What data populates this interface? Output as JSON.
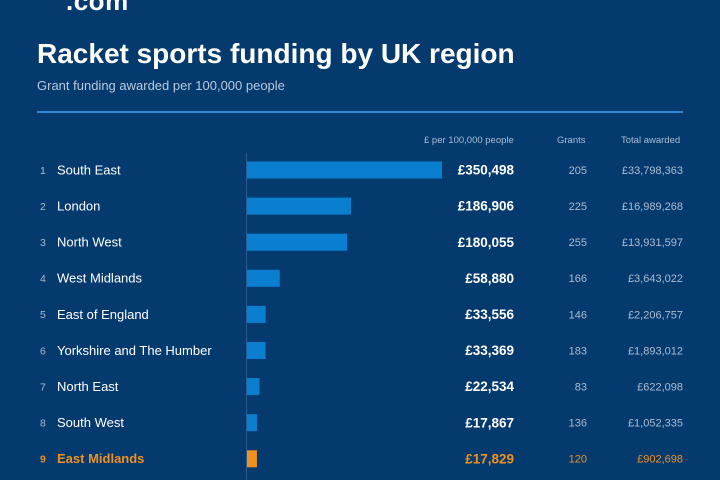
{
  "header": {
    "logo_text": ".com",
    "title": "Racket sports funding by UK region",
    "subtitle": "Grant funding awarded per 100,000 people"
  },
  "columns": {
    "per_capita": "£ per 100,000 people",
    "grants": "Grants",
    "total": "Total awarded"
  },
  "colors": {
    "background": "#053a6f",
    "bar": "#0a7fd0",
    "highlight": "#f0901e",
    "divider": "#2f86d6"
  },
  "chart_data": {
    "type": "bar",
    "orientation": "horizontal",
    "title": "Racket sports funding by UK region",
    "subtitle": "Grant funding awarded per 100,000 people",
    "xlabel": "£ per 100,000 people",
    "xlim": [
      0,
      350498
    ],
    "grid": false,
    "highlight_index": 8,
    "rows": [
      {
        "rank": "1",
        "region": "South East",
        "value": 350498,
        "value_label": "£350,498",
        "grants": "205",
        "total": "£33,798,363"
      },
      {
        "rank": "2",
        "region": "London",
        "value": 186906,
        "value_label": "£186,906",
        "grants": "225",
        "total": "£16,989,268"
      },
      {
        "rank": "3",
        "region": "North West",
        "value": 180055,
        "value_label": "£180,055",
        "grants": "255",
        "total": "£13,931,597"
      },
      {
        "rank": "4",
        "region": "West Midlands",
        "value": 58880,
        "value_label": "£58,880",
        "grants": "166",
        "total": "£3,643,022"
      },
      {
        "rank": "5",
        "region": "East of England",
        "value": 33556,
        "value_label": "£33,556",
        "grants": "146",
        "total": "£2,206,757"
      },
      {
        "rank": "6",
        "region": "Yorkshire and The Humber",
        "value": 33369,
        "value_label": "£33,369",
        "grants": "183",
        "total": "£1,893,012"
      },
      {
        "rank": "7",
        "region": "North East",
        "value": 22534,
        "value_label": "£22,534",
        "grants": "83",
        "total": "£622,098"
      },
      {
        "rank": "8",
        "region": "South West",
        "value": 17867,
        "value_label": "£17,867",
        "grants": "136",
        "total": "£1,052,335"
      },
      {
        "rank": "9",
        "region": "East Midlands",
        "value": 17829,
        "value_label": "£17,829",
        "grants": "120",
        "total": "£902,698"
      }
    ]
  }
}
